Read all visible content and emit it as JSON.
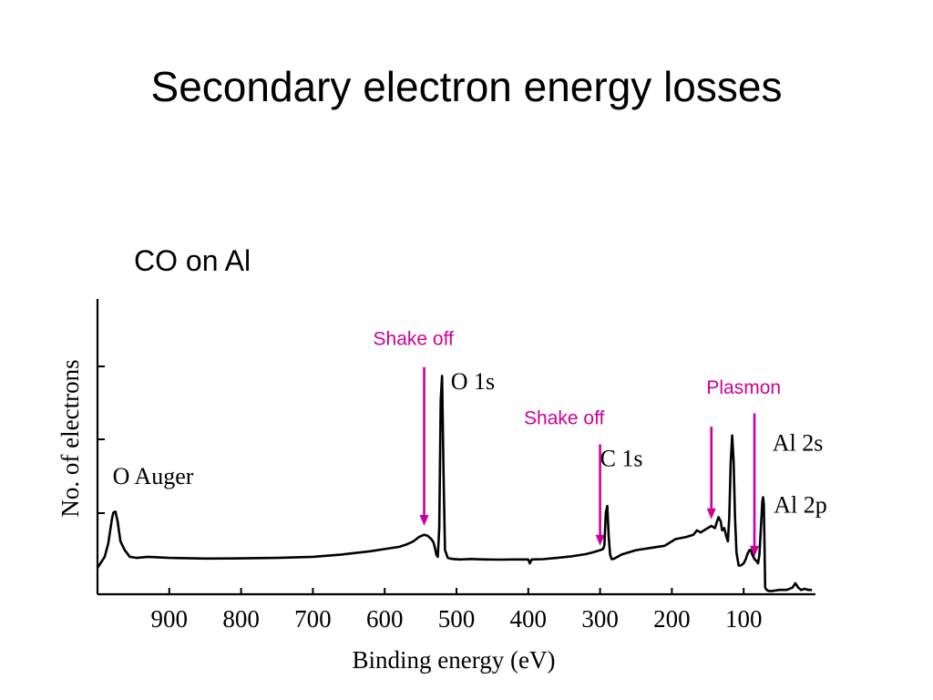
{
  "slide": {
    "title": "Secondary electron energy losses",
    "subtitle": "CO on Al"
  },
  "chart_data": {
    "type": "line",
    "xlabel": "Binding energy (eV)",
    "ylabel": "No. of electrons",
    "x_reversed": true,
    "xlim": [
      1000,
      0
    ],
    "ylim": [
      0,
      1
    ],
    "xticks": [
      900,
      800,
      700,
      600,
      500,
      400,
      300,
      200,
      100
    ],
    "grid": false,
    "series": [
      {
        "x": [
          1000,
          990,
          985,
          980,
          978,
          975,
          972,
          968,
          962,
          955,
          945,
          930,
          900,
          850,
          800,
          750,
          700,
          660,
          620,
          600,
          580,
          570,
          560,
          552,
          545,
          540,
          535,
          532,
          530,
          528,
          526,
          524,
          522,
          520,
          518,
          516,
          512,
          505,
          495,
          480,
          460,
          440,
          420,
          400,
          398,
          395,
          380,
          360,
          340,
          320,
          310,
          300,
          296,
          294,
          292,
          290,
          288,
          286,
          284,
          282,
          280,
          270,
          250,
          230,
          210,
          195,
          180,
          170,
          165,
          160,
          155,
          150,
          145,
          140,
          137,
          135,
          132,
          130,
          127,
          124,
          122,
          120,
          118,
          116,
          114,
          112,
          110,
          107,
          104,
          100,
          97,
          95,
          92,
          90,
          88,
          85,
          82,
          80,
          78,
          76,
          74,
          73,
          72,
          71,
          70,
          68,
          65,
          60,
          50,
          40,
          32,
          28,
          24,
          20,
          15,
          10,
          5
        ],
        "y": [
          0.12,
          0.17,
          0.23,
          0.34,
          0.37,
          0.375,
          0.33,
          0.24,
          0.2,
          0.17,
          0.165,
          0.17,
          0.165,
          0.162,
          0.163,
          0.165,
          0.17,
          0.18,
          0.195,
          0.205,
          0.215,
          0.225,
          0.24,
          0.26,
          0.27,
          0.265,
          0.25,
          0.235,
          0.21,
          0.18,
          0.17,
          0.3,
          0.88,
          0.99,
          0.55,
          0.2,
          0.165,
          0.16,
          0.158,
          0.16,
          0.158,
          0.157,
          0.158,
          0.158,
          0.14,
          0.158,
          0.159,
          0.165,
          0.172,
          0.182,
          0.19,
          0.2,
          0.205,
          0.22,
          0.37,
          0.4,
          0.26,
          0.18,
          0.16,
          0.16,
          0.162,
          0.18,
          0.2,
          0.21,
          0.22,
          0.25,
          0.26,
          0.27,
          0.29,
          0.28,
          0.29,
          0.3,
          0.31,
          0.3,
          0.33,
          0.35,
          0.33,
          0.29,
          0.3,
          0.26,
          0.24,
          0.35,
          0.6,
          0.72,
          0.6,
          0.35,
          0.19,
          0.13,
          0.13,
          0.14,
          0.16,
          0.18,
          0.2,
          0.2,
          0.18,
          0.16,
          0.15,
          0.14,
          0.18,
          0.3,
          0.42,
          0.44,
          0.41,
          0.22,
          0.03,
          0.02,
          0.015,
          0.015,
          0.02,
          0.02,
          0.03,
          0.05,
          0.03,
          0.02,
          0.025,
          0.02,
          0.02
        ]
      }
    ],
    "peak_labels": [
      {
        "text": "O Auger",
        "x": 930,
        "y": 0.5
      },
      {
        "text": "O 1s",
        "x": 508,
        "y": 0.93
      },
      {
        "text": "C 1s",
        "x": 300,
        "y": 0.58
      },
      {
        "text": "Al 2s",
        "x": 60,
        "y": 0.65
      },
      {
        "text": "Al 2p",
        "x": 58,
        "y": 0.37
      }
    ],
    "annotations": [
      {
        "text": "Shake off",
        "label_x": 560,
        "label_y": 1.13,
        "arrow_x": 545,
        "arrow_from": 1.03,
        "arrow_to": 0.31
      },
      {
        "text": "Shake off",
        "label_x": 350,
        "label_y": 0.77,
        "arrow_x": 300,
        "arrow_from": 0.68,
        "arrow_to": 0.22
      },
      {
        "text": "Plasmon",
        "label_x": 100,
        "label_y": 0.91,
        "arrow_x": 145,
        "arrow_from": 0.76,
        "arrow_to": 0.34
      },
      {
        "text": "",
        "label_x": 0,
        "label_y": 0,
        "arrow_x": 85,
        "arrow_from": 0.82,
        "arrow_to": 0.17
      }
    ],
    "annotation_color": "#cc0099"
  }
}
